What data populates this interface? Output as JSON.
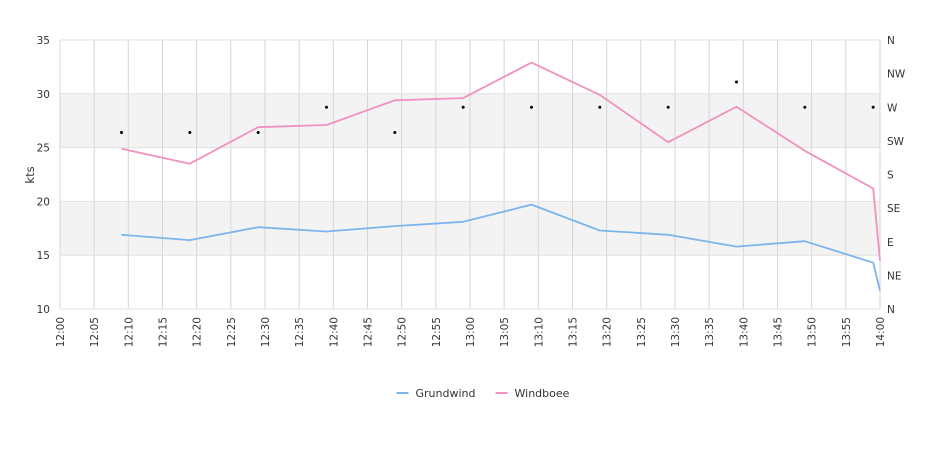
{
  "chart_data": {
    "type": "line",
    "ylabel": "kts",
    "ylim": [
      10,
      35
    ],
    "y_ticks": [
      "10",
      "15",
      "20",
      "25",
      "30",
      "35"
    ],
    "x_ticks": [
      "12:00",
      "12:05",
      "12:10",
      "12:15",
      "12:20",
      "12:25",
      "12:30",
      "12:35",
      "12:40",
      "12:45",
      "12:50",
      "12:55",
      "13:00",
      "13:05",
      "13:10",
      "13:15",
      "13:20",
      "13:25",
      "13:30",
      "13:35",
      "13:40",
      "13:45",
      "13:50",
      "13:55",
      "14:00"
    ],
    "right_axis_ticks": [
      "N",
      "NE",
      "E",
      "SE",
      "S",
      "SW",
      "W",
      "NW",
      "N"
    ],
    "grid": true,
    "legend_position": "bottom",
    "series": [
      {
        "name": "Grundwind",
        "color": "#7cb5ec",
        "x": [
          "12:09",
          "12:19",
          "12:29",
          "12:39",
          "12:49",
          "12:59",
          "13:09",
          "13:19",
          "13:29",
          "13:39",
          "13:49",
          "13:59",
          "14:00"
        ],
        "values": [
          16.9,
          16.4,
          17.6,
          17.2,
          17.7,
          18.1,
          19.7,
          17.3,
          16.9,
          15.8,
          16.3,
          14.3,
          11.7
        ]
      },
      {
        "name": "Windboee",
        "color": "#f191c1",
        "x": [
          "12:09",
          "12:19",
          "12:29",
          "12:39",
          "12:49",
          "12:59",
          "13:09",
          "13:19",
          "13:29",
          "13:39",
          "13:49",
          "13:59",
          "14:00"
        ],
        "values": [
          24.9,
          23.5,
          26.9,
          27.1,
          29.4,
          29.6,
          32.9,
          29.9,
          25.5,
          28.8,
          24.7,
          21.2,
          14.5
        ]
      }
    ],
    "wind_direction": {
      "x": [
        "12:09",
        "12:19",
        "12:29",
        "12:39",
        "12:49",
        "12:59",
        "13:09",
        "13:19",
        "13:29",
        "13:39",
        "13:49",
        "13:59"
      ],
      "degrees": [
        236.25,
        236.25,
        236.25,
        270,
        236.25,
        270,
        270,
        270,
        270,
        303.75,
        270,
        270
      ]
    }
  }
}
